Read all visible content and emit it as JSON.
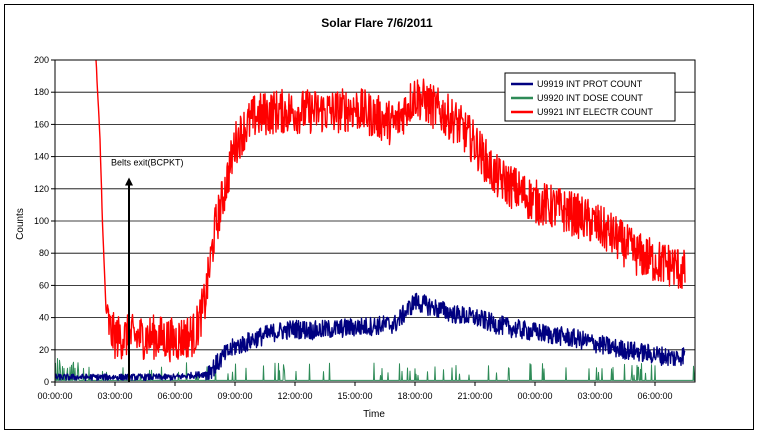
{
  "chart_data": {
    "type": "line",
    "title": "Solar Flare 7/6/2011",
    "xlabel": "Time",
    "ylabel": "Counts",
    "ylim": [
      0,
      200
    ],
    "yticks": [
      0,
      20,
      40,
      60,
      80,
      100,
      120,
      140,
      160,
      180,
      200
    ],
    "xticks": [
      "00:00:00",
      "03:00:00",
      "06:00:00",
      "09:00:00",
      "12:00:00",
      "15:00:00",
      "18:00:00",
      "21:00:00",
      "00:00:00",
      "03:00:00",
      "06:00:00"
    ],
    "x_hours_range": [
      0,
      32
    ],
    "grid": "horizontal",
    "legend_position": "top-right",
    "annotation": {
      "text": "Belts exit(BCPKT)",
      "x_hours": 3.7,
      "y_from": 0,
      "y_to": 127
    },
    "series": [
      {
        "name": "U9919 INT PROT COUNT",
        "color": "#000080",
        "noise": 6,
        "x": [
          0,
          3,
          6,
          7.5,
          8,
          8.5,
          9,
          9.5,
          10,
          11,
          12,
          13,
          14,
          15,
          16,
          17,
          17.5,
          18,
          19,
          20,
          21,
          22,
          23,
          24,
          25,
          26,
          27,
          28,
          29,
          30,
          31,
          31.5
        ],
        "y": [
          3,
          3,
          3,
          5,
          10,
          17,
          22,
          24,
          27,
          31,
          33,
          32,
          33,
          34,
          35,
          36,
          43,
          50,
          46,
          42,
          40,
          36,
          33,
          31,
          29,
          27,
          24,
          21,
          19,
          17,
          15,
          17
        ]
      },
      {
        "name": "U9920 INT DOSE COUNT",
        "color": "#2E8B57",
        "noise": 0,
        "x": [
          0,
          32
        ],
        "y": [
          1,
          1
        ]
      },
      {
        "name": "U9921 INT ELECTR COUNT",
        "color": "#FF0000",
        "noise": 14,
        "x": [
          2.05,
          2.25,
          2.4,
          2.55,
          2.75,
          3,
          4,
          5,
          6,
          7,
          7.5,
          8,
          8.5,
          9,
          9.5,
          10,
          11,
          12,
          13,
          14,
          15,
          16,
          17,
          18,
          19,
          20,
          21,
          22,
          23,
          24,
          25,
          26,
          27,
          28,
          29,
          30,
          31,
          31.5
        ],
        "y": [
          200,
          150,
          90,
          45,
          32,
          28,
          28,
          28,
          26,
          30,
          50,
          95,
          120,
          148,
          158,
          165,
          168,
          168,
          168,
          168,
          170,
          165,
          160,
          178,
          170,
          162,
          148,
          128,
          120,
          112,
          108,
          104,
          98,
          90,
          80,
          75,
          72,
          68
        ]
      }
    ]
  }
}
